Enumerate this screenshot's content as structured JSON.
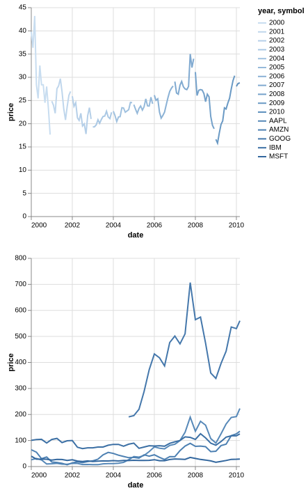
{
  "chart_data": [
    {
      "type": "line",
      "legend_title": "year, symbol",
      "x_label": "date",
      "y_label": "price",
      "xlim": [
        2000,
        2010.17
      ],
      "xticks": [
        2000,
        2002,
        2004,
        2006,
        2008,
        2010
      ],
      "ylim": [
        0,
        45
      ],
      "yticks": [
        0,
        5,
        10,
        15,
        20,
        25,
        30,
        35,
        40,
        45
      ],
      "grid": true,
      "series": [
        {
          "name": "2000",
          "color": "#c8ddf0",
          "x": [
            2000,
            2000.083,
            2000.167,
            2000.25,
            2000.333,
            2000.417,
            2000.5,
            2000.583,
            2000.667,
            2000.75,
            2000.833,
            2000.917
          ],
          "values": [
            39.81,
            36.35,
            43.22,
            28.37,
            25.45,
            32.54,
            28.4,
            28.4,
            24.53,
            28.02,
            23.34,
            17.65
          ]
        },
        {
          "name": "2001",
          "color": "#bfd6ec",
          "x": [
            2001,
            2001.083,
            2001.167,
            2001.25,
            2001.333,
            2001.417,
            2001.5,
            2001.583,
            2001.667,
            2001.75,
            2001.833,
            2001.917
          ],
          "values": [
            24.84,
            24.0,
            22.25,
            27.56,
            28.14,
            29.7,
            26.93,
            23.21,
            20.82,
            23.65,
            26.12,
            26.95
          ]
        },
        {
          "name": "2002",
          "color": "#b5cfe8",
          "x": [
            2002,
            2002.083,
            2002.167,
            2002.25,
            2002.333,
            2002.417,
            2002.5,
            2002.583,
            2002.667,
            2002.75,
            2002.833,
            2002.917
          ],
          "values": [
            25.92,
            23.73,
            24.53,
            21.26,
            20.71,
            22.25,
            19.52,
            19.97,
            17.79,
            21.75,
            23.46,
            21.03
          ]
        },
        {
          "name": "2003",
          "color": "#aac8e4",
          "x": [
            2003,
            2003.083,
            2003.167,
            2003.25,
            2003.333,
            2003.417,
            2003.5,
            2003.583,
            2003.667,
            2003.75,
            2003.833,
            2003.917
          ],
          "values": [
            19.31,
            19.34,
            19.76,
            20.87,
            20.09,
            20.93,
            21.56,
            21.65,
            22.69,
            21.45,
            21.1,
            22.46
          ]
        },
        {
          "name": "2004",
          "color": "#a0c1df",
          "x": [
            2004,
            2004.083,
            2004.167,
            2004.25,
            2004.333,
            2004.417,
            2004.5,
            2004.583,
            2004.667,
            2004.75,
            2004.833,
            2004.917
          ],
          "values": [
            22.69,
            21.77,
            20.46,
            21.45,
            21.53,
            23.44,
            23.38,
            22.47,
            22.76,
            23.02,
            24.6,
            24.52
          ]
        },
        {
          "name": "2005",
          "color": "#95b9da",
          "x": [
            2005,
            2005.083,
            2005.167,
            2005.25,
            2005.333,
            2005.417,
            2005.5,
            2005.583,
            2005.667,
            2005.75,
            2005.833,
            2005.917
          ],
          "values": [
            24.11,
            23.15,
            22.24,
            23.28,
            23.82,
            22.93,
            23.64,
            25.35,
            23.83,
            23.8,
            25.71,
            24.29
          ]
        },
        {
          "name": "2006",
          "color": "#8ab1d5",
          "x": [
            2006,
            2006.083,
            2006.167,
            2006.25,
            2006.333,
            2006.417,
            2006.5,
            2006.583,
            2006.667,
            2006.75,
            2006.833,
            2006.917
          ],
          "values": [
            26.14,
            25.04,
            25.36,
            22.5,
            21.19,
            21.8,
            22.51,
            24.13,
            25.68,
            26.96,
            27.66,
            28.13
          ]
        },
        {
          "name": "2007",
          "color": "#7fa9d0",
          "x": [
            2007,
            2007.083,
            2007.167,
            2007.25,
            2007.333,
            2007.417,
            2007.5,
            2007.583,
            2007.667,
            2007.75,
            2007.833,
            2007.917
          ],
          "values": [
            29.07,
            26.63,
            26.35,
            28.3,
            29.11,
            27.95,
            27.5,
            27.34,
            28.04,
            35.03,
            32.09,
            34.0
          ]
        },
        {
          "name": "2008",
          "color": "#74a1ca",
          "x": [
            2008,
            2008.083,
            2008.167,
            2008.25,
            2008.333,
            2008.417,
            2008.5,
            2008.583,
            2008.667,
            2008.75,
            2008.833,
            2008.917
          ],
          "values": [
            31.13,
            26.07,
            27.21,
            27.34,
            27.25,
            26.47,
            24.75,
            26.36,
            25.78,
            21.57,
            19.66,
            18.91
          ]
        },
        {
          "name": "2009",
          "color": "#6999c4",
          "x": [
            2009,
            2009.083,
            2009.167,
            2009.25,
            2009.333,
            2009.417,
            2009.5,
            2009.583,
            2009.667,
            2009.75,
            2009.833,
            2009.917
          ],
          "values": [
            16.63,
            15.81,
            17.99,
            19.84,
            20.59,
            23.42,
            23.18,
            24.43,
            25.49,
            27.48,
            29.27,
            30.34
          ]
        },
        {
          "name": "2010",
          "color": "#5f91be",
          "x": [
            2010,
            2010.083,
            2010.167
          ],
          "values": [
            28.05,
            28.67,
            28.8
          ]
        }
      ]
    },
    {
      "type": "line",
      "x_label": "date",
      "y_label": "price",
      "xlim": [
        2000,
        2010.17
      ],
      "xticks": [
        2000,
        2002,
        2004,
        2006,
        2008,
        2010
      ],
      "ylim": [
        0,
        800
      ],
      "yticks": [
        0,
        100,
        200,
        300,
        400,
        500,
        600,
        700,
        800
      ],
      "grid": true,
      "x": [
        2000,
        2000.25,
        2000.5,
        2000.75,
        2001,
        2001.25,
        2001.5,
        2001.75,
        2002,
        2002.25,
        2002.5,
        2002.75,
        2003,
        2003.25,
        2003.5,
        2003.75,
        2004,
        2004.25,
        2004.5,
        2004.75,
        2005,
        2005.25,
        2005.5,
        2005.75,
        2006,
        2006.25,
        2006.5,
        2006.75,
        2007,
        2007.25,
        2007.5,
        2007.75,
        2008,
        2008.25,
        2008.5,
        2008.75,
        2009,
        2009.25,
        2009.5,
        2009.75,
        2010,
        2010.17
      ],
      "series": [
        {
          "name": "AAPL",
          "color": "#5688b8",
          "values": [
            25.94,
            31.01,
            25.41,
            9.78,
            10.81,
            12.36,
            9.4,
            8.91,
            12.36,
            12.1,
            7.63,
            8.03,
            7.18,
            7.11,
            10.54,
            11.5,
            11.28,
            12.91,
            16.17,
            26.2,
            38.45,
            36.06,
            42.65,
            57.59,
            75.51,
            70.39,
            67.96,
            81.08,
            85.73,
            99.8,
            131.76,
            189.95,
            135.36,
            173.95,
            158.95,
            107.59,
            90.13,
            125.83,
            163.39,
            188.5,
            192.06,
            223.02
          ]
        },
        {
          "name": "AMZN",
          "color": "#4d80b2",
          "values": [
            64.56,
            55.19,
            30.13,
            36.62,
            17.31,
            15.78,
            12.49,
            6.98,
            14.19,
            18.23,
            15.24,
            18.9,
            21.85,
            28.35,
            45.0,
            54.4,
            50.4,
            43.6,
            38.9,
            34.1,
            35.18,
            32.36,
            44.99,
            39.86,
            45.22,
            35.21,
            26.89,
            38.09,
            37.67,
            61.33,
            78.54,
            89.15,
            77.7,
            78.63,
            76.34,
            57.24,
            58.82,
            80.52,
            85.76,
            118.81,
            125.41,
            135.77
          ]
        },
        {
          "name": "GOOG",
          "color": "#4477ab",
          "values": [
            null,
            null,
            null,
            null,
            null,
            null,
            null,
            null,
            null,
            null,
            null,
            null,
            null,
            null,
            null,
            null,
            null,
            null,
            null,
            190.64,
            195.62,
            220.0,
            287.76,
            372.14,
            432.66,
            417.94,
            386.6,
            476.39,
            501.5,
            471.38,
            510.0,
            707.0,
            564.3,
            574.29,
            473.75,
            359.36,
            338.53,
            395.97,
            443.05,
            536.12,
            529.94,
            560.19
          ]
        },
        {
          "name": "IBM",
          "color": "#3b6fa4",
          "values": [
            100.52,
            103.8,
            104.66,
            90.5,
            104,
            108,
            92,
            99,
            100,
            74,
            69,
            72,
            72,
            75,
            75,
            82,
            85,
            85,
            78,
            86,
            90,
            70,
            75,
            80,
            79,
            80,
            78,
            89,
            95,
            100,
            114,
            112,
            104,
            126,
            110,
            90,
            82,
            96,
            113,
            118,
            118,
            125.55
          ]
        },
        {
          "name": "MSFT",
          "color": "#33679e",
          "values": [
            39.81,
            28.37,
            28.4,
            28.02,
            24.84,
            27.56,
            26.93,
            23.65,
            25.92,
            21.26,
            19.52,
            21.75,
            19.31,
            20.87,
            21.56,
            21.45,
            22.69,
            21.45,
            23.38,
            23.02,
            24.11,
            23.28,
            23.64,
            23.8,
            26.14,
            22.5,
            22.51,
            26.96,
            29.07,
            28.3,
            27.5,
            35.03,
            31.13,
            27.34,
            24.75,
            21.57,
            16.63,
            19.84,
            23.18,
            27.48,
            28.05,
            28.8
          ]
        }
      ]
    }
  ]
}
